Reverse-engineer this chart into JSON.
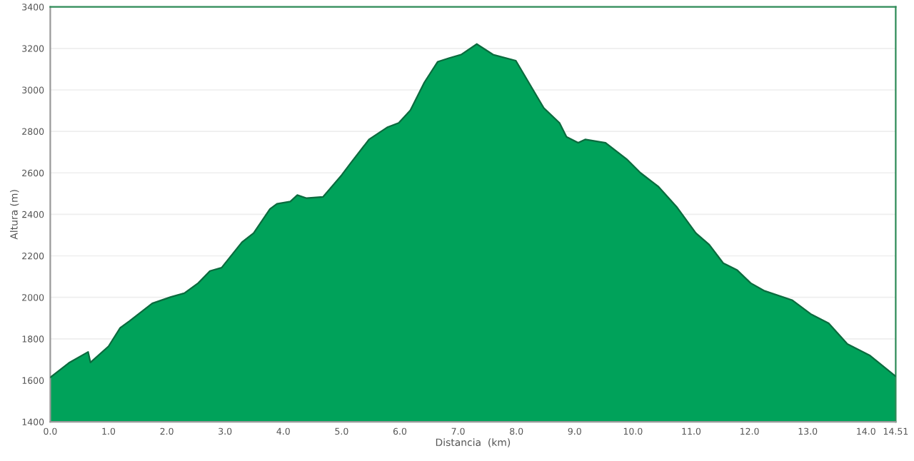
{
  "chart_data": {
    "type": "area",
    "xlabel": "Distancia  (km)",
    "ylabel": "Altura (m)",
    "x": [
      0,
      0.33,
      0.65,
      0.69,
      1.0,
      1.2,
      1.36,
      1.75,
      2.07,
      2.3,
      2.54,
      2.74,
      2.94,
      3.29,
      3.49,
      3.77,
      3.89,
      4.12,
      4.24,
      4.4,
      4.68,
      5.0,
      5.15,
      5.47,
      5.78,
      5.98,
      6.18,
      6.42,
      6.65,
      6.85,
      7.05,
      7.32,
      7.6,
      7.99,
      8.47,
      8.74,
      8.86,
      9.06,
      9.18,
      9.53,
      9.89,
      10.13,
      10.44,
      10.76,
      11.08,
      11.31,
      11.55,
      11.79,
      12.02,
      12.26,
      12.73,
      13.05,
      13.36,
      13.68,
      14.07,
      14.51
    ],
    "series": [
      {
        "color": "#00a25a",
        "values": [
          1614,
          1686,
          1737,
          1686,
          1764,
          1853,
          1886,
          1971,
          2002,
          2020,
          2069,
          2127,
          2143,
          2266,
          2310,
          2426,
          2451,
          2462,
          2493,
          2478,
          2484,
          2589,
          2645,
          2761,
          2819,
          2841,
          2902,
          3036,
          3136,
          3154,
          3170,
          3221,
          3170,
          3141,
          2913,
          2841,
          2774,
          2745,
          2761,
          2745,
          2667,
          2600,
          2533,
          2433,
          2310,
          2254,
          2165,
          2131,
          2069,
          2031,
          1987,
          1920,
          1875,
          1775,
          1719,
          1619
        ]
      }
    ],
    "xlim": [
      0,
      14.51
    ],
    "xticks": [
      {
        "value": 0,
        "label": "0.0"
      },
      {
        "value": 1,
        "label": "1.0"
      },
      {
        "value": 2,
        "label": "2.0"
      },
      {
        "value": 3,
        "label": "3.0"
      },
      {
        "value": 4,
        "label": "4.0"
      },
      {
        "value": 5,
        "label": "5.0"
      },
      {
        "value": 6,
        "label": "6.0"
      },
      {
        "value": 7,
        "label": "7.0"
      },
      {
        "value": 8,
        "label": "8.0"
      },
      {
        "value": 9,
        "label": "9.0"
      },
      {
        "value": 10,
        "label": "10.0"
      },
      {
        "value": 11,
        "label": "11.0"
      },
      {
        "value": 12,
        "label": "12.0"
      },
      {
        "value": 13,
        "label": "13.0"
      },
      {
        "value": 14,
        "label": "14.0"
      },
      {
        "value": 14.51,
        "label": "14.51"
      }
    ],
    "ylim": [
      1400,
      3400
    ],
    "yticks": [
      1400,
      1600,
      1800,
      2000,
      2200,
      2400,
      2600,
      2800,
      3000,
      3200,
      3400
    ],
    "grid": "y"
  }
}
